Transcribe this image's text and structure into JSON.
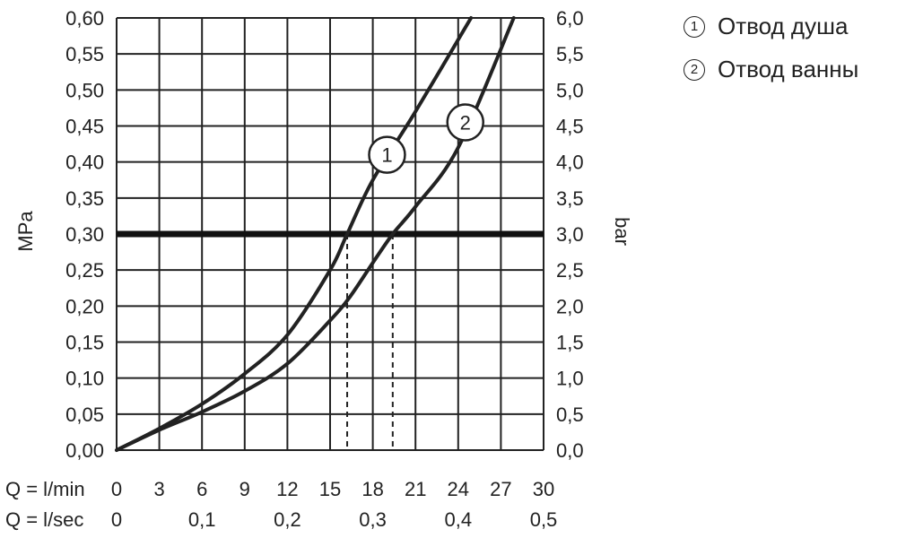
{
  "chart_data": {
    "type": "line",
    "ylabel_left": "MPa",
    "ylabel_right": "bar",
    "xlim": [
      0,
      30
    ],
    "ylim": [
      0,
      0.6
    ],
    "x_ticks": [
      "0",
      "3",
      "6",
      "9",
      "12",
      "15",
      "18",
      "21",
      "24",
      "27",
      "30"
    ],
    "x_row_label": "Q = l/min",
    "x2_ticks": [
      "0",
      "0,1",
      "0,2",
      "0,3",
      "0,4",
      "0,5"
    ],
    "x2_row_label": "Q = l/sec",
    "y_ticks_left": [
      "0,00",
      "0,05",
      "0,10",
      "0,15",
      "0,20",
      "0,25",
      "0,30",
      "0,35",
      "0,40",
      "0,45",
      "0,50",
      "0,55",
      "0,60"
    ],
    "y_ticks_right": [
      "0,0",
      "0,5",
      "1,0",
      "1,5",
      "2,0",
      "2,5",
      "3,0",
      "3,5",
      "4,0",
      "4,5",
      "5,0",
      "5,5",
      "6,0"
    ],
    "grid": true,
    "reference_line": {
      "y": 0.3
    },
    "series": [
      {
        "name": "Отвод душа",
        "marker": "1",
        "x": [
          0,
          3,
          6,
          9,
          12,
          15,
          16.2,
          18,
          21,
          24.9
        ],
        "y": [
          0,
          0.03,
          0.064,
          0.106,
          0.16,
          0.25,
          0.3,
          0.375,
          0.47,
          0.6
        ]
      },
      {
        "name": "Отвод ванны",
        "marker": "2",
        "x": [
          0,
          3,
          6,
          9,
          12,
          15,
          16.4,
          18,
          19.4,
          21,
          24,
          27.9
        ],
        "y": [
          0,
          0.028,
          0.053,
          0.082,
          0.12,
          0.18,
          0.213,
          0.26,
          0.3,
          0.338,
          0.42,
          0.6
        ]
      }
    ],
    "dashed_guides": [
      {
        "x": 16.2,
        "y": 0.3
      },
      {
        "x": 19.4,
        "y": 0.3
      }
    ]
  },
  "legend": [
    {
      "num": "1",
      "label": "Отвод душа"
    },
    {
      "num": "2",
      "label": "Отвод ванны"
    }
  ]
}
